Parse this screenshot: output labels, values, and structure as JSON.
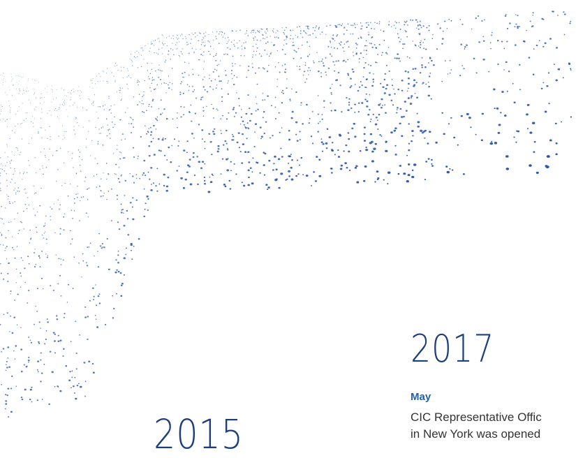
{
  "timeline": [
    {
      "year": "2017",
      "month": "May",
      "lines": [
        "CIC Representative Offic",
        "in New York was opened"
      ]
    },
    {
      "year": "2015"
    }
  ]
}
